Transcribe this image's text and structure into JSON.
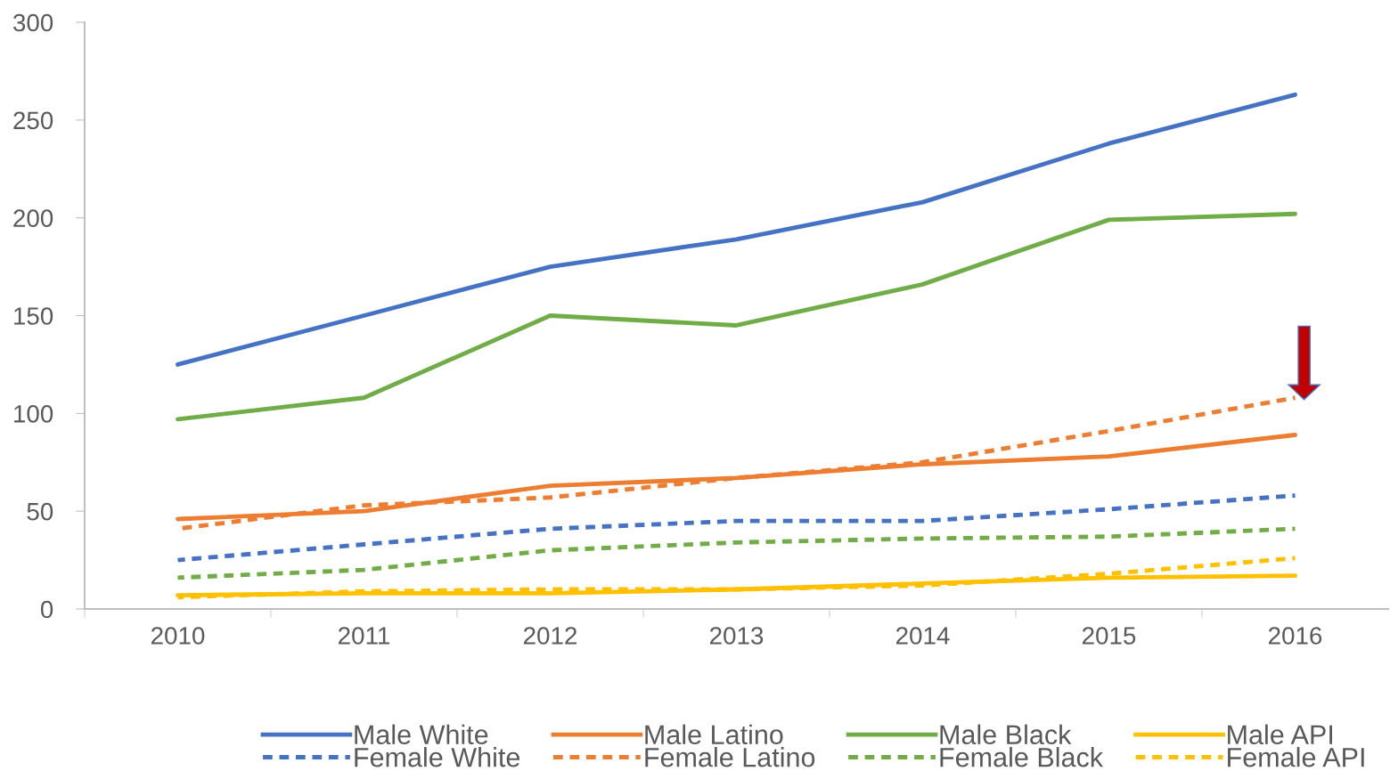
{
  "chart_data": {
    "type": "line",
    "categories": [
      "2010",
      "2011",
      "2012",
      "2013",
      "2014",
      "2015",
      "2016"
    ],
    "ylim": [
      0,
      300
    ],
    "yticks": [
      0,
      50,
      100,
      150,
      200,
      250,
      300
    ],
    "grid": false,
    "legend": "bottom",
    "marker": "none",
    "series": [
      {
        "name": "Male White",
        "color": "#4472c4",
        "line_style": "solid",
        "values": [
          125,
          150,
          175,
          189,
          208,
          238,
          263
        ]
      },
      {
        "name": "Male Latino",
        "color": "#ed7d31",
        "line_style": "solid",
        "values": [
          46,
          50,
          63,
          67,
          74,
          78,
          89
        ]
      },
      {
        "name": "Male Black",
        "color": "#70ad47",
        "line_style": "solid",
        "values": [
          97,
          108,
          150,
          145,
          166,
          199,
          202
        ]
      },
      {
        "name": "Male API",
        "color": "#ffc000",
        "line_style": "solid",
        "values": [
          7,
          8,
          8,
          10,
          13,
          16,
          17
        ]
      },
      {
        "name": "Female White",
        "color": "#4472c4",
        "line_style": "dashed",
        "values": [
          25,
          33,
          41,
          45,
          45,
          51,
          58
        ]
      },
      {
        "name": "Female Latino",
        "color": "#ed7d31",
        "line_style": "dashed",
        "values": [
          41,
          53,
          57,
          67,
          75,
          91,
          108
        ]
      },
      {
        "name": "Female Black",
        "color": "#70ad47",
        "line_style": "dashed",
        "values": [
          16,
          20,
          30,
          34,
          36,
          37,
          41
        ]
      },
      {
        "name": "Female API",
        "color": "#ffc000",
        "line_style": "dashed",
        "values": [
          6,
          9,
          10,
          10,
          12,
          18,
          26
        ]
      }
    ]
  }
}
